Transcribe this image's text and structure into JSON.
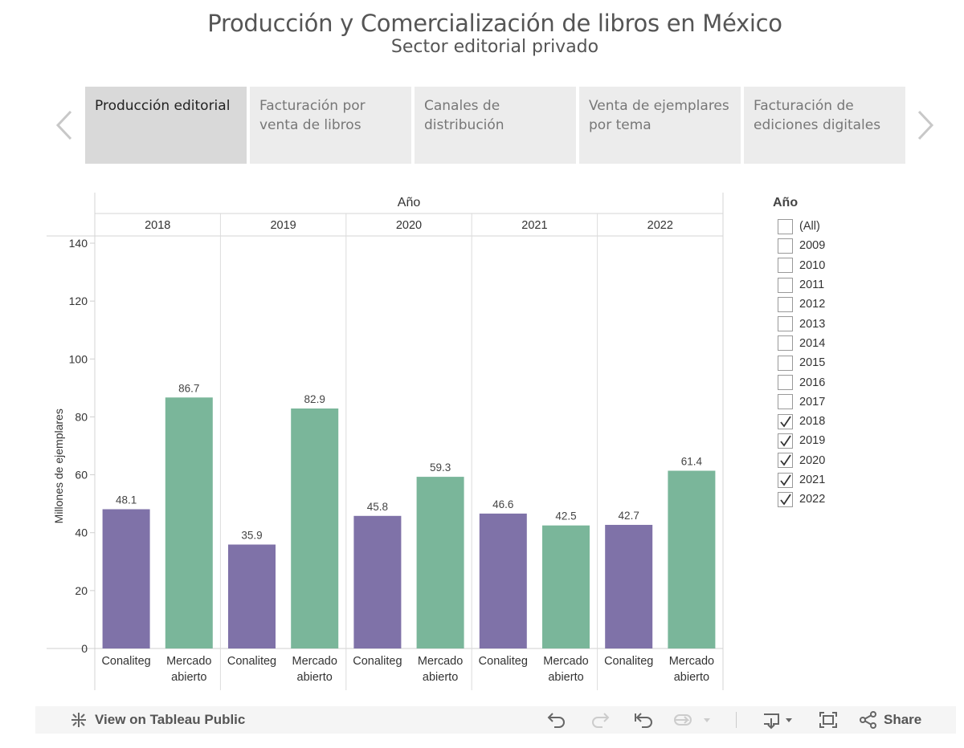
{
  "header": {
    "title": "Producción y Comercialización de libros en México",
    "subtitle": "Sector editorial privado"
  },
  "tabs": [
    {
      "label": "Producción editorial",
      "active": true
    },
    {
      "label": "Facturación por venta de libros",
      "active": false
    },
    {
      "label": "Canales de distribución",
      "active": false
    },
    {
      "label": "Venta de ejemplares por tema",
      "active": false
    },
    {
      "label": "Facturación de ediciones digitales",
      "active": false
    }
  ],
  "filter": {
    "title": "Año",
    "options": [
      {
        "label": "(All)",
        "checked": false
      },
      {
        "label": "2009",
        "checked": false
      },
      {
        "label": "2010",
        "checked": false
      },
      {
        "label": "2011",
        "checked": false
      },
      {
        "label": "2012",
        "checked": false
      },
      {
        "label": "2013",
        "checked": false
      },
      {
        "label": "2014",
        "checked": false
      },
      {
        "label": "2015",
        "checked": false
      },
      {
        "label": "2016",
        "checked": false
      },
      {
        "label": "2017",
        "checked": false
      },
      {
        "label": "2018",
        "checked": true
      },
      {
        "label": "2019",
        "checked": true
      },
      {
        "label": "2020",
        "checked": true
      },
      {
        "label": "2021",
        "checked": true
      },
      {
        "label": "2022",
        "checked": true
      }
    ]
  },
  "chart_data": {
    "type": "bar",
    "column_header": "Año",
    "years": [
      "2018",
      "2019",
      "2020",
      "2021",
      "2022"
    ],
    "categories": [
      "Conaliteg",
      "Mercado abierto"
    ],
    "category_lines": [
      [
        "Conaliteg"
      ],
      [
        "Mercado",
        "abierto"
      ]
    ],
    "values": [
      [
        48.1,
        86.7
      ],
      [
        35.9,
        82.9
      ],
      [
        45.8,
        59.3
      ],
      [
        46.6,
        42.5
      ],
      [
        42.7,
        61.4
      ]
    ],
    "value_labels": [
      [
        "48.1",
        "86.7"
      ],
      [
        "35.9",
        "82.9"
      ],
      [
        "45.8",
        "59.3"
      ],
      [
        "46.6",
        "42.5"
      ],
      [
        "42.7",
        "61.4"
      ]
    ],
    "ylabel": "Millones de ejemplares",
    "ylim": [
      0,
      140
    ],
    "yticks": [
      0,
      20,
      40,
      60,
      80,
      100,
      120,
      140
    ],
    "colors": {
      "Conaliteg": "#7f72a8",
      "Mercado abierto": "#7ab69a"
    },
    "grid": false,
    "legend": "none"
  },
  "toolbar": {
    "view_label": "View on Tableau Public",
    "share_label": "Share"
  }
}
